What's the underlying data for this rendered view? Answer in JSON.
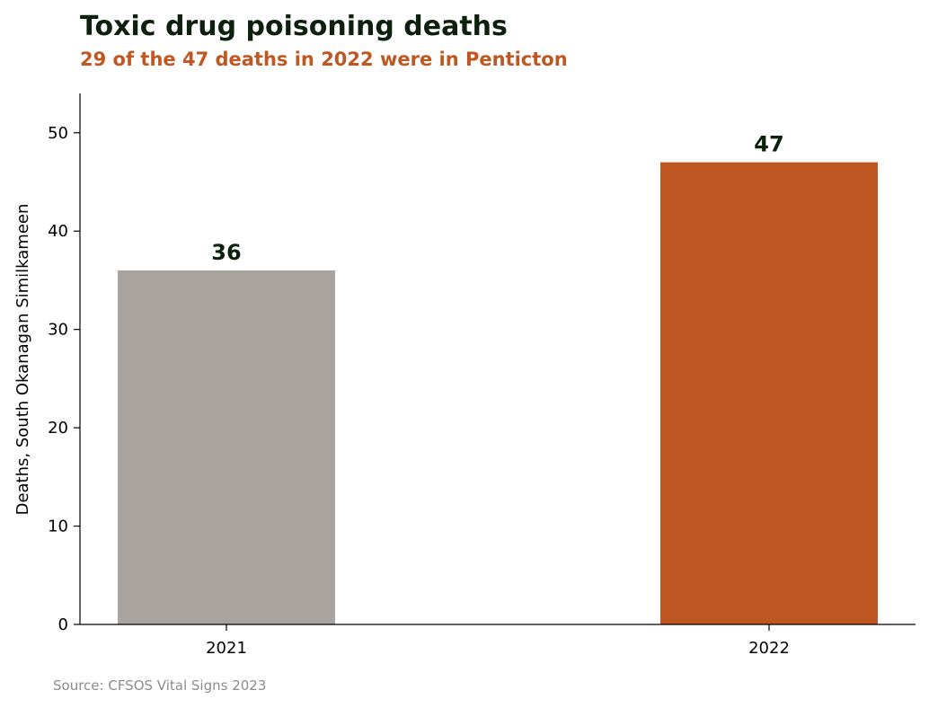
{
  "title": "Toxic drug poisoning deaths",
  "subtitle": "29 of the 47 deaths in 2022 were in Penticton",
  "source": "Source: CFSOS Vital Signs 2023",
  "colors": {
    "title": "#0d1f0d",
    "accent": "#bf5722",
    "muted_bar": "#a8a39e",
    "source": "#8c8c8c"
  },
  "chart_data": {
    "type": "bar",
    "title": "Toxic drug poisoning deaths",
    "subtitle": "29 of the 47 deaths in 2022 were in Penticton",
    "categories": [
      "2021",
      "2022"
    ],
    "values": [
      36,
      47
    ],
    "bar_colors": [
      "#a8a39e",
      "#bf5722"
    ],
    "data_labels": [
      "36",
      "47"
    ],
    "xlabel": "",
    "ylabel": "Deaths, South Okanagan Similkameen",
    "ylim": [
      0,
      54
    ],
    "yticks": [
      0,
      10,
      20,
      30,
      40,
      50
    ],
    "grid": false,
    "legend": "none"
  }
}
